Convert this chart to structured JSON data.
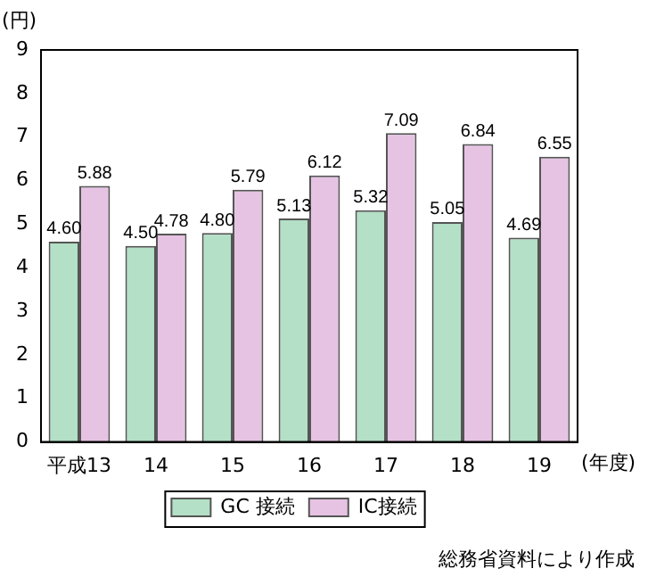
{
  "chart_data": {
    "type": "bar",
    "ylabel": "(円)",
    "xlabel": "(年度)",
    "categories": [
      "平成13",
      "14",
      "15",
      "16",
      "17",
      "18",
      "19"
    ],
    "series": [
      {
        "name": "GC 接続",
        "color": "#b3e0c6",
        "values": [
          4.6,
          4.5,
          4.8,
          5.13,
          5.32,
          5.05,
          4.69
        ]
      },
      {
        "name": "IC接続",
        "color": "#e6c3e3",
        "values": [
          5.88,
          4.78,
          5.79,
          6.12,
          7.09,
          6.84,
          6.55
        ]
      }
    ],
    "value_labels": [
      [
        "4.60",
        "4.50",
        "4.80",
        "5.13",
        "5.32",
        "5.05",
        "4.69"
      ],
      [
        "5.88",
        "4.78",
        "5.79",
        "6.12",
        "7.09",
        "6.84",
        "6.55"
      ]
    ],
    "ylim": [
      0,
      9
    ],
    "yticks": [
      0,
      1,
      2,
      3,
      4,
      5,
      6,
      7,
      8,
      9
    ],
    "grid": false,
    "legend": "bottom",
    "annotations": [
      "総務省資料により作成"
    ]
  }
}
